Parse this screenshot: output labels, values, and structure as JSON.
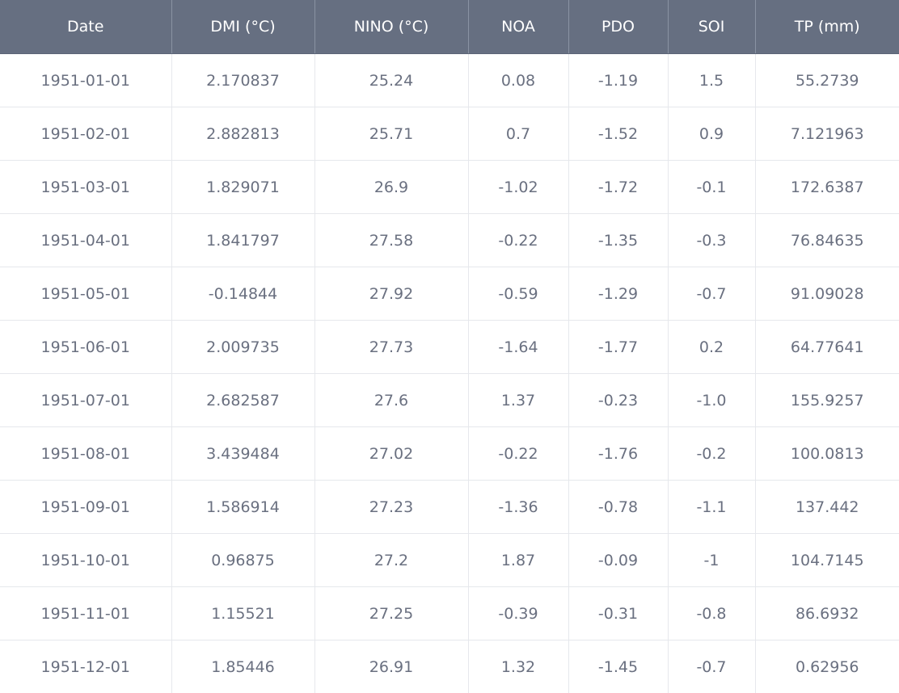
{
  "table": {
    "columns": [
      "Date",
      "DMI (°C)",
      "NINO (°C)",
      "NOA",
      "PDO",
      "SOI",
      "TP (mm)"
    ],
    "rows": [
      [
        "1951-01-01",
        "2.170837",
        "25.24",
        "0.08",
        "-1.19",
        "1.5",
        "55.2739"
      ],
      [
        "1951-02-01",
        "2.882813",
        "25.71",
        "0.7",
        "-1.52",
        "0.9",
        "7.121963"
      ],
      [
        "1951-03-01",
        "1.829071",
        "26.9",
        "-1.02",
        "-1.72",
        "-0.1",
        "172.6387"
      ],
      [
        "1951-04-01",
        "1.841797",
        "27.58",
        "-0.22",
        "-1.35",
        "-0.3",
        "76.84635"
      ],
      [
        "1951-05-01",
        "-0.14844",
        "27.92",
        "-0.59",
        "-1.29",
        "-0.7",
        "91.09028"
      ],
      [
        "1951-06-01",
        "2.009735",
        "27.73",
        "-1.64",
        "-1.77",
        "0.2",
        "64.77641"
      ],
      [
        "1951-07-01",
        "2.682587",
        "27.6",
        "1.37",
        "-0.23",
        "-1.0",
        "155.9257"
      ],
      [
        "1951-08-01",
        "3.439484",
        "27.02",
        "-0.22",
        "-1.76",
        "-0.2",
        "100.0813"
      ],
      [
        "1951-09-01",
        "1.586914",
        "27.23",
        "-1.36",
        "-0.78",
        "-1.1",
        "137.442"
      ],
      [
        "1951-10-01",
        "0.96875",
        "27.2",
        "1.87",
        "-0.09",
        "-1",
        "104.7145"
      ],
      [
        "1951-11-01",
        "1.15521",
        "27.25",
        "-0.39",
        "-0.31",
        "-0.8",
        "86.6932"
      ],
      [
        "1951-12-01",
        "1.85446",
        "26.91",
        "1.32",
        "-1.45",
        "-0.7",
        "0.62956"
      ]
    ]
  },
  "colors": {
    "header_bg": "#666f81",
    "header_text": "#ffffff",
    "cell_text": "#6a7080",
    "grid_line": "#e6e8ec"
  }
}
